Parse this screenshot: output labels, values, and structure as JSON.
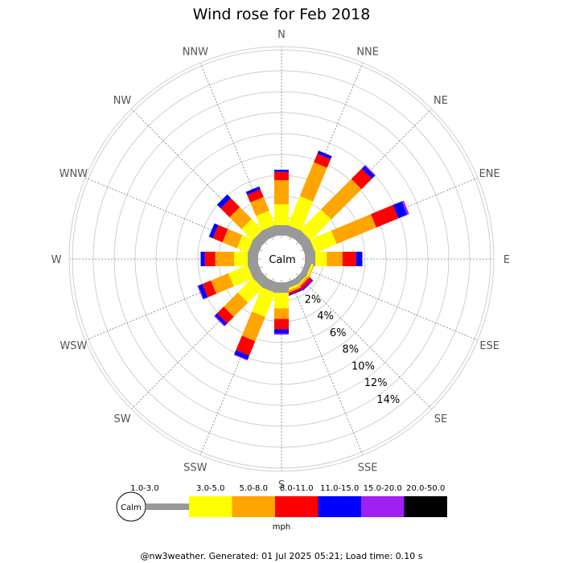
{
  "chart_data": {
    "type": "wind-rose",
    "title": "Wind rose for Feb 2018",
    "directions": [
      "N",
      "NNE",
      "NE",
      "ENE",
      "E",
      "ESE",
      "SE",
      "SSE",
      "S",
      "SSW",
      "SW",
      "WSW",
      "W",
      "WNW",
      "NW",
      "NNW"
    ],
    "radial_ticks": [
      "2%",
      "4%",
      "6%",
      "8%",
      "10%",
      "12%",
      "14%"
    ],
    "radial_max": 14,
    "center_label": "Calm",
    "unit": "mph",
    "bins": [
      {
        "label": "1.0-3.0",
        "color": "#999999"
      },
      {
        "label": "3.0-5.0",
        "color": "#ffff00"
      },
      {
        "label": "5.0-8.0",
        "color": "#ffa500"
      },
      {
        "label": "8.0-11.0",
        "color": "#ff0000"
      },
      {
        "label": "11.0-15.0",
        "color": "#0000ff"
      },
      {
        "label": "15.0-20.0",
        "color": "#a020f0"
      },
      {
        "label": "20.0-50.0",
        "color": "#000000"
      }
    ],
    "series": [
      {
        "dir": "N",
        "values": [
          1.0,
          2.0,
          2.3,
          0.8,
          0.2,
          0.0,
          0.0
        ]
      },
      {
        "dir": "NNE",
        "values": [
          1.0,
          3.0,
          3.5,
          0.9,
          0.3,
          0.0,
          0.0
        ]
      },
      {
        "dir": "NE",
        "values": [
          1.0,
          2.8,
          4.1,
          1.4,
          0.4,
          0.1,
          0.0
        ]
      },
      {
        "dir": "ENE",
        "values": [
          1.0,
          2.2,
          4.1,
          2.3,
          0.9,
          0.2,
          0.0
        ]
      },
      {
        "dir": "E",
        "values": [
          1.0,
          1.1,
          1.5,
          1.3,
          0.6,
          0.0,
          0.0
        ]
      },
      {
        "dir": "ESE",
        "values": [
          0.6,
          0.2,
          0.1,
          0.0,
          0.0,
          0.0,
          0.0
        ]
      },
      {
        "dir": "SE",
        "values": [
          0.6,
          0.1,
          0.2,
          0.3,
          0.1,
          0.1,
          0.0
        ]
      },
      {
        "dir": "SSE",
        "values": [
          0.6,
          0.2,
          0.2,
          0.2,
          0.1,
          0.0,
          0.0
        ]
      },
      {
        "dir": "S",
        "values": [
          1.0,
          1.5,
          1.0,
          1.0,
          0.4,
          0.1,
          0.0
        ]
      },
      {
        "dir": "SSW",
        "values": [
          1.0,
          2.5,
          2.5,
          1.5,
          0.4,
          0.1,
          0.0
        ]
      },
      {
        "dir": "SW",
        "values": [
          1.0,
          2.0,
          1.9,
          0.9,
          0.3,
          0.1,
          0.0
        ]
      },
      {
        "dir": "WSW",
        "values": [
          1.0,
          2.0,
          1.8,
          0.9,
          0.4,
          0.1,
          0.0
        ]
      },
      {
        "dir": "W",
        "values": [
          1.0,
          1.3,
          1.8,
          1.0,
          0.4,
          0.0,
          0.0
        ]
      },
      {
        "dir": "WNW",
        "values": [
          1.0,
          1.1,
          1.5,
          1.0,
          0.4,
          0.0,
          0.0
        ]
      },
      {
        "dir": "NW",
        "values": [
          1.0,
          1.5,
          1.6,
          1.2,
          0.5,
          0.0,
          0.0
        ]
      },
      {
        "dir": "NNW",
        "values": [
          1.0,
          1.5,
          1.4,
          0.8,
          0.3,
          0.0,
          0.0
        ]
      }
    ]
  },
  "footer": "@nw3weather. Generated: 01 Jul 2025 05:21; Load time: 0.10 s"
}
